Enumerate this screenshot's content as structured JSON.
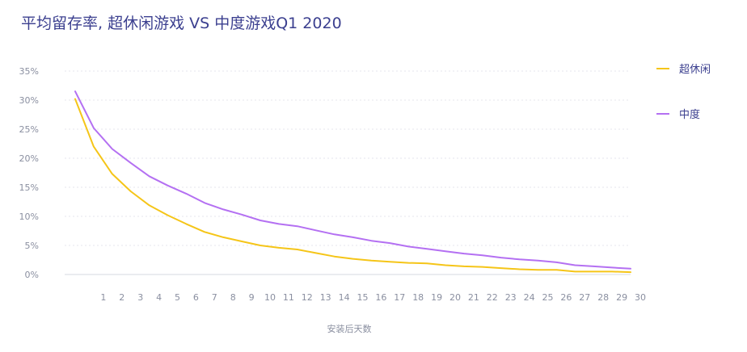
{
  "chart_data": {
    "type": "line",
    "title": "平均留存率, 超休闲游戏 VS 中度游戏Q1 2020",
    "xlabel": "安装后天数",
    "ylabel": "",
    "x": [
      0,
      1,
      2,
      3,
      4,
      5,
      6,
      7,
      8,
      9,
      10,
      11,
      12,
      13,
      14,
      15,
      16,
      17,
      18,
      19,
      20,
      21,
      22,
      23,
      24,
      25,
      26,
      27,
      28,
      29,
      30
    ],
    "x_tick_labels": [
      "1",
      "2",
      "3",
      "4",
      "5",
      "6",
      "7",
      "8",
      "9",
      "10",
      "11",
      "12",
      "13",
      "14",
      "15",
      "16",
      "17",
      "18",
      "19",
      "20",
      "21",
      "22",
      "23",
      "24",
      "25",
      "26",
      "27",
      "28",
      "29",
      "30"
    ],
    "y_ticks": [
      0,
      5,
      10,
      15,
      20,
      25,
      30,
      35
    ],
    "y_tick_labels": [
      "0%",
      "5%",
      "10%",
      "15%",
      "20%",
      "25%",
      "30%",
      "35%"
    ],
    "ylim": [
      0,
      35
    ],
    "grid": true,
    "legend_position": "right",
    "series": [
      {
        "name": "超休闲",
        "color": "#f5c518",
        "values": [
          30.2,
          22.0,
          17.3,
          14.3,
          11.9,
          10.2,
          8.7,
          7.3,
          6.4,
          5.7,
          5.0,
          4.6,
          4.3,
          3.7,
          3.1,
          2.7,
          2.4,
          2.2,
          2.0,
          1.9,
          1.6,
          1.4,
          1.3,
          1.1,
          0.9,
          0.8,
          0.8,
          0.5,
          0.5,
          0.5,
          0.4
        ]
      },
      {
        "name": "中度",
        "color": "#b470f2",
        "values": [
          31.5,
          25.2,
          21.6,
          19.2,
          16.9,
          15.3,
          13.9,
          12.3,
          11.2,
          10.3,
          9.3,
          8.7,
          8.3,
          7.6,
          6.9,
          6.4,
          5.8,
          5.4,
          4.8,
          4.4,
          4.0,
          3.6,
          3.3,
          2.9,
          2.6,
          2.4,
          2.1,
          1.6,
          1.4,
          1.2,
          1.0
        ]
      }
    ]
  }
}
